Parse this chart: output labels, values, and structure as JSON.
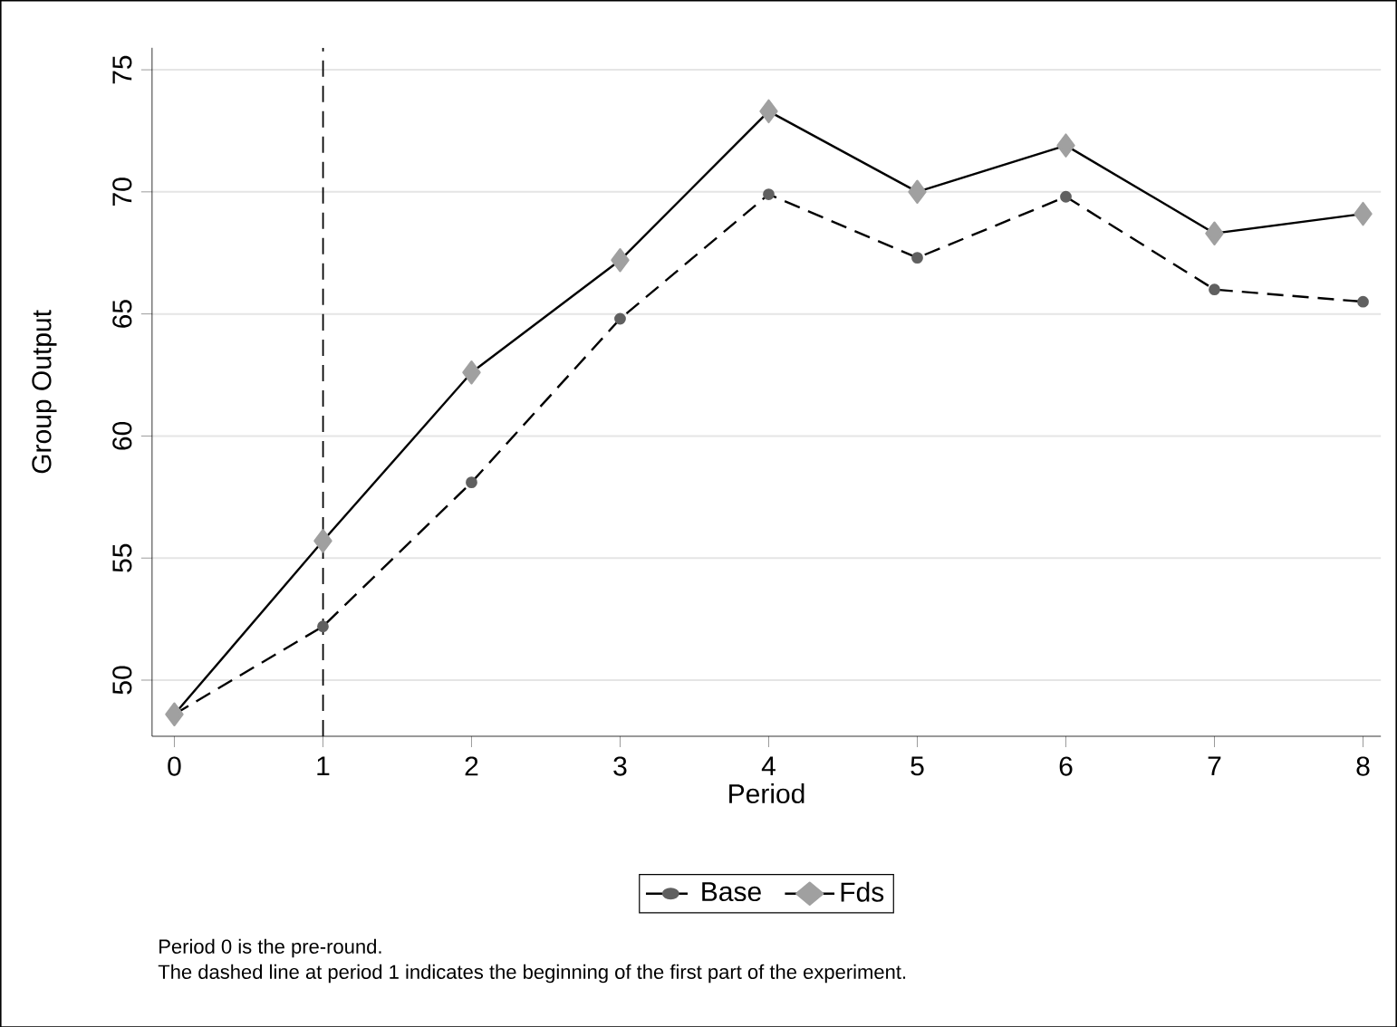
{
  "chart_data": {
    "type": "line",
    "xlabel": "Period",
    "ylabel": "Group Output",
    "x": [
      0,
      1,
      2,
      3,
      4,
      5,
      6,
      7,
      8
    ],
    "series": [
      {
        "name": "Base",
        "color": "#606060",
        "marker": "circle",
        "line_style": "dashed",
        "values": [
          48.6,
          52.2,
          58.1,
          64.8,
          69.9,
          67.3,
          69.8,
          66.0,
          65.5
        ]
      },
      {
        "name": "Fds",
        "color": "#a0a0a0",
        "marker": "diamond",
        "line_style": "solid",
        "values": [
          48.6,
          55.7,
          62.6,
          67.2,
          73.3,
          70.0,
          71.9,
          68.3,
          69.1
        ]
      }
    ],
    "xlim": [
      -0.15,
      8.12
    ],
    "ylim": [
      47.7,
      75.9
    ],
    "xticks": [
      0,
      1,
      2,
      3,
      4,
      5,
      6,
      7,
      8
    ],
    "yticks": [
      50,
      55,
      60,
      65,
      70,
      75
    ],
    "grid": "y",
    "legend": "bottom",
    "ref_lines": [
      {
        "axis": "x",
        "value": 1,
        "color": "#000000",
        "line_style": "dashed"
      }
    ],
    "annotations": [
      "Period 0 is the pre-round.",
      "The dashed line at period 1 indicates the beginning of the first part of the experiment."
    ]
  }
}
